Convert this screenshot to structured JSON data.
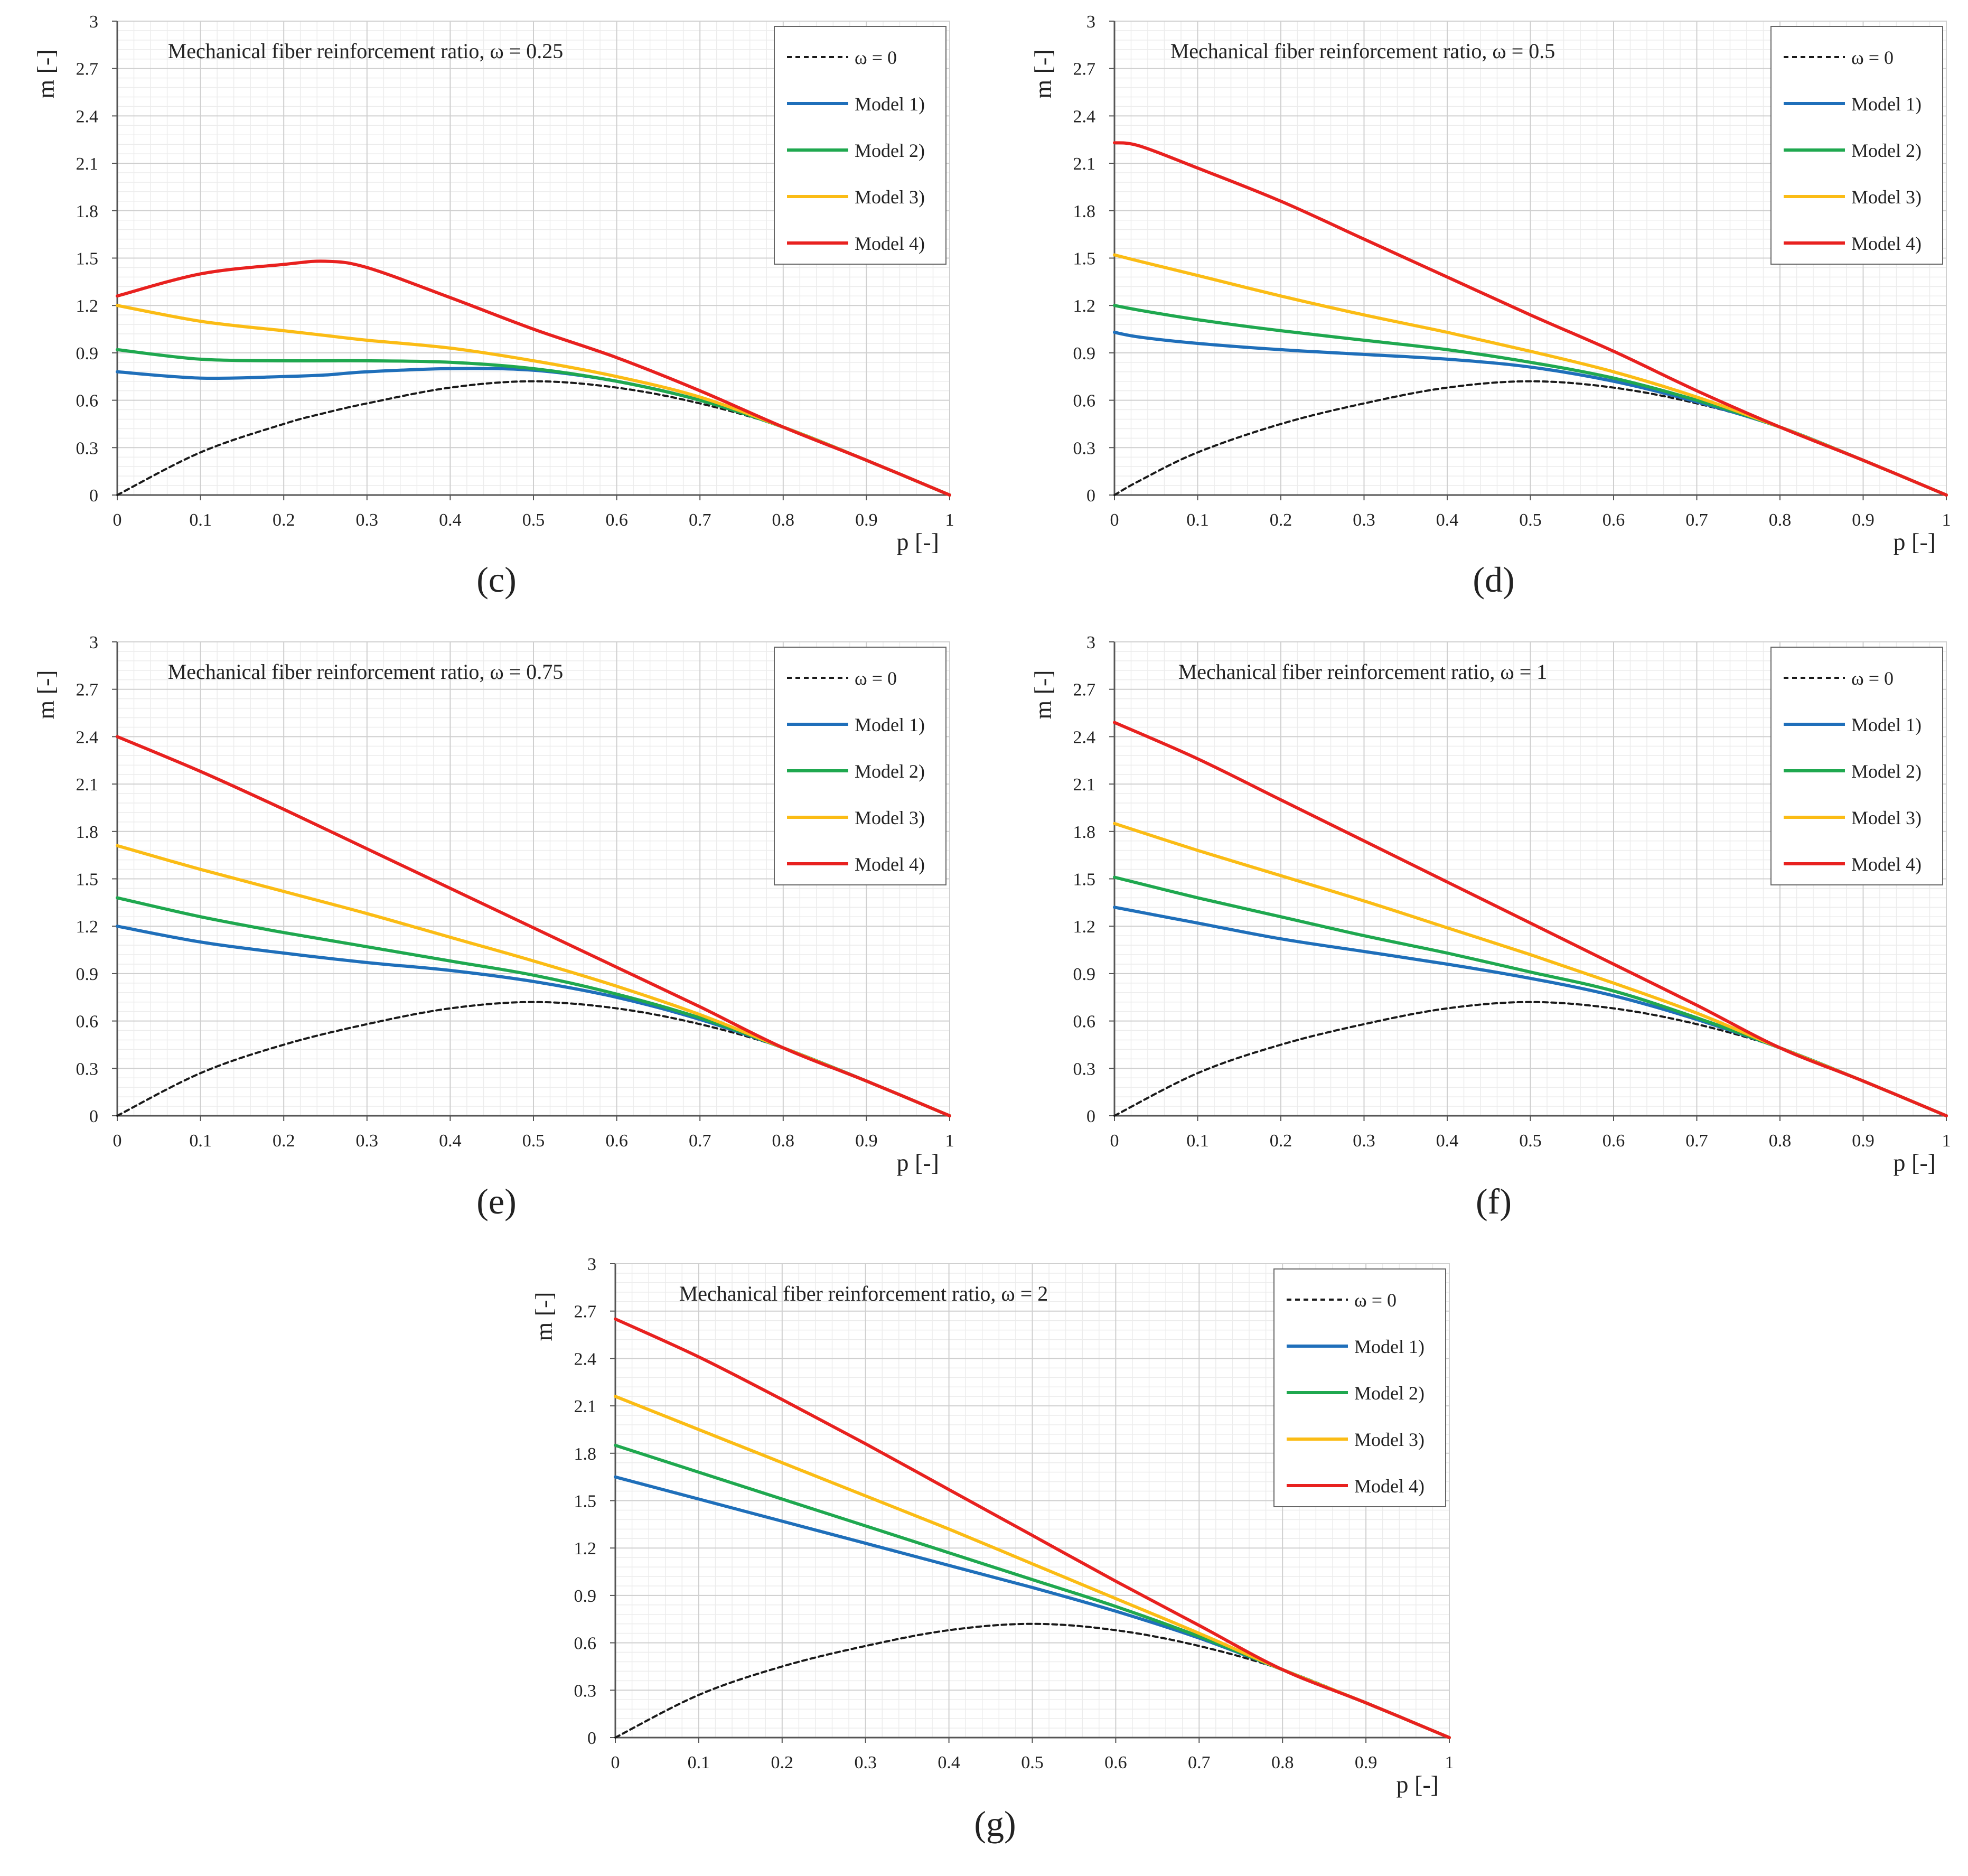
{
  "figure": {
    "panels_order": [
      "c",
      "d",
      "e",
      "f",
      "g"
    ]
  },
  "chart_data": [
    {
      "id": "c",
      "panel_label": "(c)",
      "type": "line",
      "title": "Mechanical fiber reinforcement ratio, ω = 0.25",
      "xlabel": "p [-]",
      "ylabel": "m [-]",
      "xlim": [
        0,
        1
      ],
      "ylim": [
        0,
        3
      ],
      "xticks": [
        "0",
        "0.1",
        "0.2",
        "0.3",
        "0.4",
        "0.5",
        "0.6",
        "0.7",
        "0.8",
        "0.9",
        "1"
      ],
      "yticks": [
        "0",
        "0.3",
        "0.6",
        "0.9",
        "1.2",
        "1.5",
        "1.8",
        "2.1",
        "2.4",
        "2.7",
        "3"
      ],
      "grid": true,
      "legend_position": "top-right",
      "x": [
        0,
        0.1,
        0.2,
        0.25,
        0.3,
        0.4,
        0.5,
        0.6,
        0.7,
        0.8,
        0.9,
        1
      ],
      "series": [
        {
          "name": "ω = 0",
          "color": "#1a1a1a",
          "dash": true,
          "values": [
            0,
            0.27,
            0.45,
            0.52,
            0.58,
            0.68,
            0.72,
            0.68,
            0.58,
            0.43,
            0.22,
            0
          ]
        },
        {
          "name": "Model 1)",
          "color": "#1f6fba",
          "dash": false,
          "values": [
            0.78,
            0.74,
            0.75,
            0.76,
            0.78,
            0.8,
            0.79,
            0.72,
            0.6,
            0.43,
            0.22,
            0
          ]
        },
        {
          "name": "Model 2)",
          "color": "#1fa84f",
          "dash": false,
          "values": [
            0.92,
            0.86,
            0.85,
            0.85,
            0.85,
            0.84,
            0.8,
            0.72,
            0.6,
            0.43,
            0.22,
            0
          ]
        },
        {
          "name": "Model 3)",
          "color": "#fbbc15",
          "dash": false,
          "values": [
            1.2,
            1.1,
            1.04,
            1.01,
            0.98,
            0.93,
            0.85,
            0.75,
            0.62,
            0.43,
            0.22,
            0
          ]
        },
        {
          "name": "Model 4)",
          "color": "#e8211f",
          "dash": false,
          "values": [
            1.26,
            1.4,
            1.46,
            1.48,
            1.44,
            1.25,
            1.05,
            0.87,
            0.66,
            0.43,
            0.22,
            0
          ]
        }
      ]
    },
    {
      "id": "d",
      "panel_label": "(d)",
      "type": "line",
      "title": "Mechanical fiber reinforcement ratio, ω = 0.5",
      "xlabel": "p [-]",
      "ylabel": "m [-]",
      "xlim": [
        0,
        1
      ],
      "ylim": [
        0,
        3
      ],
      "xticks": [
        "0",
        "0.1",
        "0.2",
        "0.3",
        "0.4",
        "0.5",
        "0.6",
        "0.7",
        "0.8",
        "0.9",
        "1"
      ],
      "yticks": [
        "0",
        "0.3",
        "0.6",
        "0.9",
        "1.2",
        "1.5",
        "1.8",
        "2.1",
        "2.4",
        "2.7",
        "3"
      ],
      "grid": true,
      "legend_position": "top-right",
      "x": [
        0,
        0.03,
        0.1,
        0.2,
        0.3,
        0.4,
        0.5,
        0.6,
        0.7,
        0.8,
        0.9,
        1
      ],
      "series": [
        {
          "name": "ω = 0",
          "color": "#1a1a1a",
          "dash": true,
          "values": [
            0,
            0.09,
            0.27,
            0.45,
            0.58,
            0.68,
            0.72,
            0.68,
            0.58,
            0.43,
            0.22,
            0
          ]
        },
        {
          "name": "Model 1)",
          "color": "#1f6fba",
          "dash": false,
          "values": [
            1.03,
            1.0,
            0.96,
            0.92,
            0.89,
            0.86,
            0.81,
            0.72,
            0.59,
            0.43,
            0.22,
            0
          ]
        },
        {
          "name": "Model 2)",
          "color": "#1fa84f",
          "dash": false,
          "values": [
            1.2,
            1.17,
            1.11,
            1.04,
            0.98,
            0.92,
            0.84,
            0.74,
            0.6,
            0.43,
            0.22,
            0
          ]
        },
        {
          "name": "Model 3)",
          "color": "#fbbc15",
          "dash": false,
          "values": [
            1.52,
            1.48,
            1.39,
            1.26,
            1.14,
            1.03,
            0.91,
            0.78,
            0.62,
            0.43,
            0.22,
            0
          ]
        },
        {
          "name": "Model 4)",
          "color": "#e8211f",
          "dash": false,
          "values": [
            2.23,
            2.21,
            2.07,
            1.86,
            1.62,
            1.38,
            1.14,
            0.91,
            0.66,
            0.43,
            0.22,
            0
          ]
        }
      ]
    },
    {
      "id": "e",
      "panel_label": "(e)",
      "type": "line",
      "title": "Mechanical fiber reinforcement ratio, ω = 0.75",
      "xlabel": "p [-]",
      "ylabel": "m [-]",
      "xlim": [
        0,
        1
      ],
      "ylim": [
        0,
        3
      ],
      "xticks": [
        "0",
        "0.1",
        "0.2",
        "0.3",
        "0.4",
        "0.5",
        "0.6",
        "0.7",
        "0.8",
        "0.9",
        "1"
      ],
      "yticks": [
        "0",
        "0.3",
        "0.6",
        "0.9",
        "1.2",
        "1.5",
        "1.8",
        "2.1",
        "2.4",
        "2.7",
        "3"
      ],
      "grid": true,
      "legend_position": "top-right",
      "x": [
        0,
        0.1,
        0.2,
        0.3,
        0.4,
        0.5,
        0.6,
        0.7,
        0.8,
        0.9,
        1
      ],
      "series": [
        {
          "name": "ω = 0",
          "color": "#1a1a1a",
          "dash": true,
          "values": [
            0,
            0.27,
            0.45,
            0.58,
            0.68,
            0.72,
            0.68,
            0.58,
            0.43,
            0.22,
            0
          ]
        },
        {
          "name": "Model 1)",
          "color": "#1f6fba",
          "dash": false,
          "values": [
            1.2,
            1.1,
            1.03,
            0.97,
            0.92,
            0.85,
            0.75,
            0.61,
            0.43,
            0.22,
            0
          ]
        },
        {
          "name": "Model 2)",
          "color": "#1fa84f",
          "dash": false,
          "values": [
            1.38,
            1.26,
            1.16,
            1.07,
            0.98,
            0.89,
            0.77,
            0.62,
            0.43,
            0.22,
            0
          ]
        },
        {
          "name": "Model 3)",
          "color": "#fbbc15",
          "dash": false,
          "values": [
            1.71,
            1.56,
            1.42,
            1.28,
            1.13,
            0.98,
            0.82,
            0.64,
            0.43,
            0.22,
            0
          ]
        },
        {
          "name": "Model 4)",
          "color": "#e8211f",
          "dash": false,
          "values": [
            2.4,
            2.18,
            1.94,
            1.69,
            1.44,
            1.19,
            0.94,
            0.69,
            0.43,
            0.22,
            0
          ]
        }
      ]
    },
    {
      "id": "f",
      "panel_label": "(f)",
      "type": "line",
      "title": "Mechanical fiber reinforcement ratio, ω = 1",
      "xlabel": "p [-]",
      "ylabel": "m [-]",
      "xlim": [
        0,
        1
      ],
      "ylim": [
        0,
        3
      ],
      "xticks": [
        "0",
        "0.1",
        "0.2",
        "0.3",
        "0.4",
        "0.5",
        "0.6",
        "0.7",
        "0.8",
        "0.9",
        "1"
      ],
      "yticks": [
        "0",
        "0.3",
        "0.6",
        "0.9",
        "1.2",
        "1.5",
        "1.8",
        "2.1",
        "2.4",
        "2.7",
        "3"
      ],
      "grid": true,
      "legend_position": "top-right",
      "x": [
        0,
        0.1,
        0.2,
        0.3,
        0.4,
        0.5,
        0.6,
        0.7,
        0.8,
        0.9,
        1
      ],
      "series": [
        {
          "name": "ω = 0",
          "color": "#1a1a1a",
          "dash": true,
          "values": [
            0,
            0.27,
            0.45,
            0.58,
            0.68,
            0.72,
            0.68,
            0.58,
            0.43,
            0.22,
            0
          ]
        },
        {
          "name": "Model 1)",
          "color": "#1f6fba",
          "dash": false,
          "values": [
            1.32,
            1.22,
            1.12,
            1.04,
            0.96,
            0.87,
            0.76,
            0.61,
            0.43,
            0.22,
            0
          ]
        },
        {
          "name": "Model 2)",
          "color": "#1fa84f",
          "dash": false,
          "values": [
            1.51,
            1.38,
            1.26,
            1.14,
            1.03,
            0.91,
            0.79,
            0.62,
            0.43,
            0.22,
            0
          ]
        },
        {
          "name": "Model 3)",
          "color": "#fbbc15",
          "dash": false,
          "values": [
            1.85,
            1.68,
            1.52,
            1.36,
            1.19,
            1.02,
            0.84,
            0.65,
            0.43,
            0.22,
            0
          ]
        },
        {
          "name": "Model 4)",
          "color": "#e8211f",
          "dash": false,
          "values": [
            2.49,
            2.26,
            2.0,
            1.74,
            1.48,
            1.22,
            0.96,
            0.7,
            0.43,
            0.22,
            0
          ]
        }
      ]
    },
    {
      "id": "g",
      "panel_label": "(g)",
      "type": "line",
      "title": "Mechanical fiber reinforcement ratio, ω = 2",
      "xlabel": "p [-]",
      "ylabel": "m [-]",
      "xlim": [
        0,
        1
      ],
      "ylim": [
        0,
        3
      ],
      "xticks": [
        "0",
        "0.1",
        "0.2",
        "0.3",
        "0.4",
        "0.5",
        "0.6",
        "0.7",
        "0.8",
        "0.9",
        "1"
      ],
      "yticks": [
        "0",
        "0.3",
        "0.6",
        "0.9",
        "1.2",
        "1.5",
        "1.8",
        "2.1",
        "2.4",
        "2.7",
        "3"
      ],
      "grid": true,
      "legend_position": "top-right",
      "x": [
        0,
        0.1,
        0.2,
        0.3,
        0.4,
        0.5,
        0.6,
        0.7,
        0.8,
        0.9,
        1
      ],
      "series": [
        {
          "name": "ω = 0",
          "color": "#1a1a1a",
          "dash": true,
          "values": [
            0,
            0.27,
            0.45,
            0.58,
            0.68,
            0.72,
            0.68,
            0.58,
            0.43,
            0.22,
            0
          ]
        },
        {
          "name": "Model 1)",
          "color": "#1f6fba",
          "dash": false,
          "values": [
            1.65,
            1.51,
            1.37,
            1.23,
            1.09,
            0.95,
            0.8,
            0.63,
            0.43,
            0.22,
            0
          ]
        },
        {
          "name": "Model 2)",
          "color": "#1fa84f",
          "dash": false,
          "values": [
            1.85,
            1.68,
            1.51,
            1.34,
            1.17,
            1.0,
            0.83,
            0.64,
            0.43,
            0.22,
            0
          ]
        },
        {
          "name": "Model 3)",
          "color": "#fbbc15",
          "dash": false,
          "values": [
            2.16,
            1.95,
            1.74,
            1.53,
            1.32,
            1.1,
            0.88,
            0.66,
            0.43,
            0.22,
            0
          ]
        },
        {
          "name": "Model 4)",
          "color": "#e8211f",
          "dash": false,
          "values": [
            2.65,
            2.41,
            2.14,
            1.86,
            1.57,
            1.28,
            0.99,
            0.71,
            0.43,
            0.22,
            0
          ]
        }
      ]
    }
  ]
}
